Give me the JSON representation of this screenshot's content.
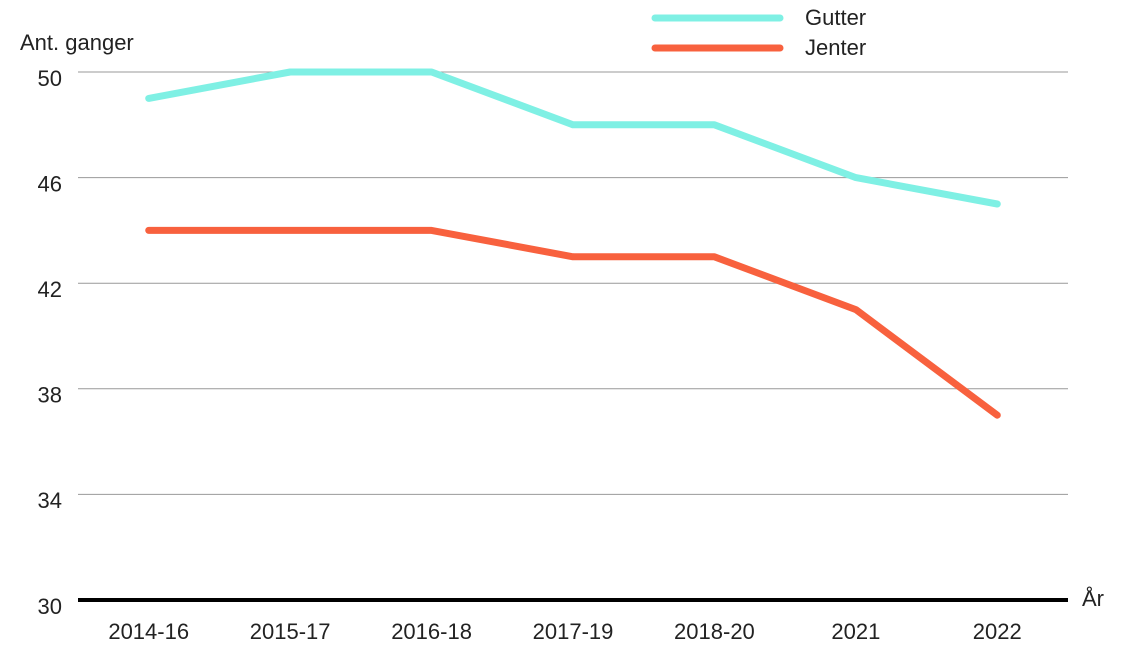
{
  "chart_data": {
    "type": "line",
    "y_label": "Ant. ganger",
    "x_label": "År",
    "categories": [
      "2014-16",
      "2015-17",
      "2016-18",
      "2017-19",
      "2018-20",
      "2021",
      "2022"
    ],
    "series": [
      {
        "name": "Gutter",
        "color": "#7ff0e4",
        "values": [
          49,
          50,
          50,
          48,
          48,
          46,
          45
        ]
      },
      {
        "name": "Jenter",
        "color": "#f8613e",
        "values": [
          44,
          44,
          44,
          43,
          43,
          41,
          37
        ]
      }
    ],
    "ylim": [
      30,
      50
    ],
    "yticks": [
      30,
      34,
      38,
      42,
      46,
      50
    ],
    "grid": true,
    "legend": "top right"
  }
}
